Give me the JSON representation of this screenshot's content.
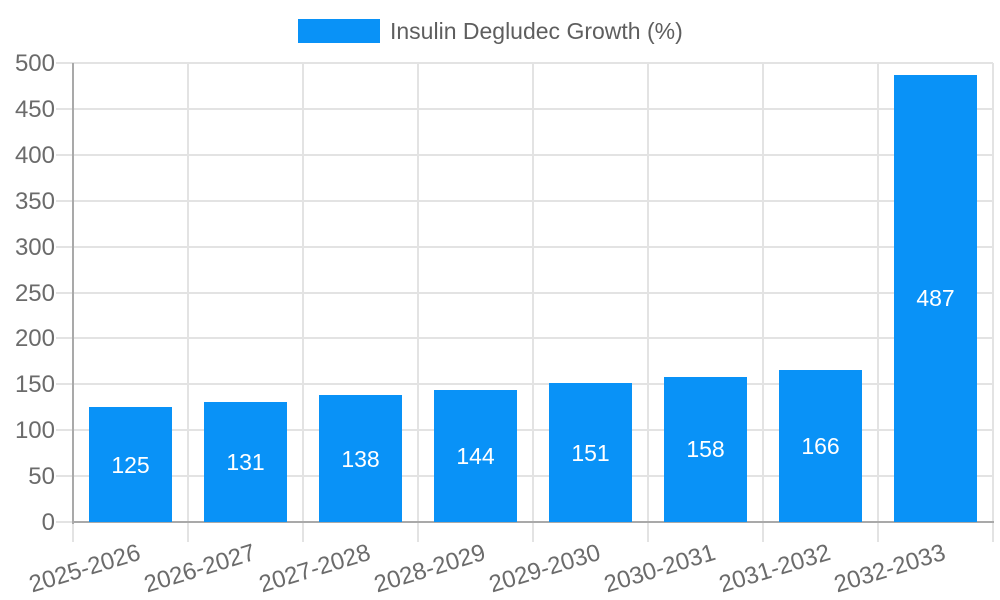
{
  "chart_data": {
    "type": "bar",
    "title": "",
    "legend": {
      "label": "Insulin Degludec Growth (%)",
      "position": "top"
    },
    "categories": [
      "2025-2026",
      "2026-2027",
      "2027-2028",
      "2028-2029",
      "2029-2030",
      "2030-2031",
      "2031-2032",
      "2032-2033"
    ],
    "series": [
      {
        "name": "Insulin Degludec Growth (%)",
        "values": [
          125,
          131,
          138,
          144,
          151,
          158,
          166,
          487
        ]
      }
    ],
    "value_labels_shown": true,
    "xlabel": "",
    "ylabel": "",
    "ylim": [
      0,
      500
    ],
    "yticks": [
      0,
      50,
      100,
      150,
      200,
      250,
      300,
      350,
      400,
      450,
      500
    ],
    "grid": true
  },
  "colors": {
    "bar": "#0992f7",
    "grid": "#e3e3e3",
    "axis": "#a9a9a9",
    "tick_text": "#6b6b6b",
    "legend_text": "#5e5e5e",
    "value_text": "#ffffff",
    "background": "#ffffff"
  }
}
